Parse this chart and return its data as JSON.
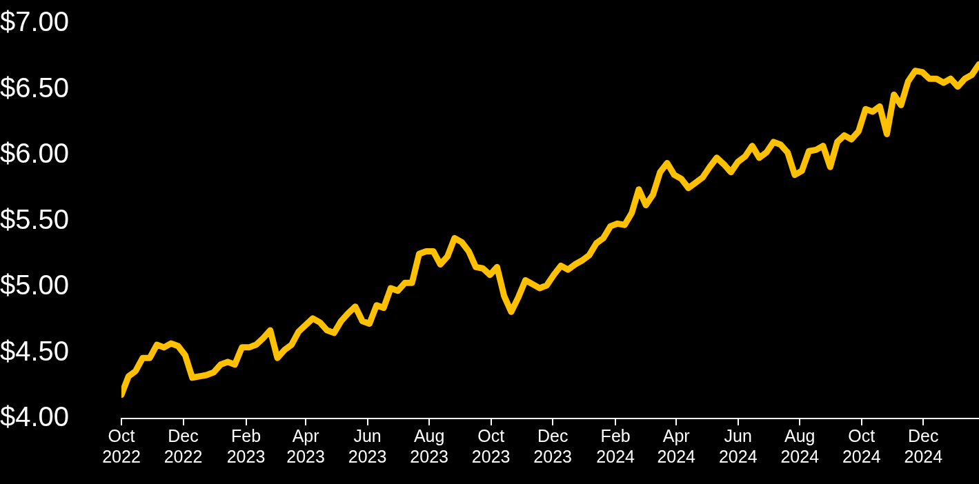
{
  "chart_data": {
    "type": "line",
    "x": [
      "2022-10-01",
      "2022-10-08",
      "2022-10-15",
      "2022-10-22",
      "2022-10-29",
      "2022-11-05",
      "2022-11-12",
      "2022-11-19",
      "2022-11-26",
      "2022-12-03",
      "2022-12-10",
      "2022-12-17",
      "2022-12-24",
      "2022-12-31",
      "2023-01-07",
      "2023-01-14",
      "2023-01-21",
      "2023-01-28",
      "2023-02-04",
      "2023-02-11",
      "2023-02-18",
      "2023-02-25",
      "2023-03-04",
      "2023-03-11",
      "2023-03-18",
      "2023-03-25",
      "2023-04-01",
      "2023-04-08",
      "2023-04-15",
      "2023-04-22",
      "2023-04-29",
      "2023-05-06",
      "2023-05-13",
      "2023-05-20",
      "2023-05-27",
      "2023-06-03",
      "2023-06-10",
      "2023-06-17",
      "2023-06-24",
      "2023-07-01",
      "2023-07-08",
      "2023-07-15",
      "2023-07-22",
      "2023-07-29",
      "2023-08-05",
      "2023-08-12",
      "2023-08-19",
      "2023-08-26",
      "2023-09-02",
      "2023-09-09",
      "2023-09-16",
      "2023-09-23",
      "2023-09-30",
      "2023-10-07",
      "2023-10-14",
      "2023-10-21",
      "2023-10-28",
      "2023-11-04",
      "2023-11-11",
      "2023-11-18",
      "2023-11-25",
      "2023-12-02",
      "2023-12-09",
      "2023-12-16",
      "2023-12-23",
      "2023-12-30",
      "2024-01-06",
      "2024-01-13",
      "2024-01-20",
      "2024-01-27",
      "2024-02-03",
      "2024-02-10",
      "2024-02-17",
      "2024-02-24",
      "2024-03-02",
      "2024-03-09",
      "2024-03-16",
      "2024-03-23",
      "2024-03-30",
      "2024-04-06",
      "2024-04-13",
      "2024-04-20",
      "2024-04-27",
      "2024-05-04",
      "2024-05-11",
      "2024-05-18",
      "2024-05-25",
      "2024-06-01",
      "2024-06-08",
      "2024-06-15",
      "2024-06-22",
      "2024-06-29",
      "2024-07-06",
      "2024-07-13",
      "2024-07-20",
      "2024-07-27",
      "2024-08-03",
      "2024-08-10",
      "2024-08-17",
      "2024-08-24",
      "2024-08-31",
      "2024-09-07",
      "2024-09-14",
      "2024-09-21",
      "2024-09-28",
      "2024-10-05",
      "2024-10-12",
      "2024-10-19",
      "2024-10-26",
      "2024-11-02",
      "2024-11-09",
      "2024-11-16",
      "2024-11-23",
      "2024-11-30",
      "2024-12-07",
      "2024-12-14",
      "2024-12-21",
      "2024-12-28",
      "2025-01-04",
      "2025-01-11",
      "2025-01-18",
      "2025-01-25"
    ],
    "series": [
      {
        "color": "#ffc000",
        "values": [
          4.18,
          4.32,
          4.36,
          4.46,
          4.46,
          4.56,
          4.54,
          4.57,
          4.55,
          4.48,
          4.31,
          4.32,
          4.33,
          4.35,
          4.41,
          4.43,
          4.41,
          4.54,
          4.54,
          4.56,
          4.61,
          4.67,
          4.46,
          4.52,
          4.56,
          4.66,
          4.71,
          4.76,
          4.73,
          4.67,
          4.65,
          4.74,
          4.8,
          4.85,
          4.74,
          4.72,
          4.86,
          4.84,
          4.99,
          4.97,
          5.03,
          5.03,
          5.25,
          5.27,
          5.27,
          5.17,
          5.23,
          5.37,
          5.34,
          5.27,
          5.15,
          5.14,
          5.09,
          5.15,
          4.93,
          4.81,
          4.92,
          5.05,
          5.02,
          4.99,
          5.01,
          5.09,
          5.16,
          5.13,
          5.17,
          5.2,
          5.24,
          5.33,
          5.37,
          5.46,
          5.48,
          5.47,
          5.56,
          5.74,
          5.62,
          5.7,
          5.87,
          5.94,
          5.85,
          5.82,
          5.75,
          5.79,
          5.83,
          5.91,
          5.98,
          5.93,
          5.87,
          5.95,
          5.99,
          6.07,
          5.98,
          6.02,
          6.1,
          6.08,
          6.02,
          5.85,
          5.88,
          6.03,
          6.04,
          6.07,
          5.91,
          6.1,
          6.15,
          6.12,
          6.18,
          6.35,
          6.33,
          6.37,
          6.16,
          6.46,
          6.38,
          6.56,
          6.64,
          6.63,
          6.58,
          6.58,
          6.55,
          6.58,
          6.52,
          6.58,
          6.61,
          6.69
        ]
      }
    ],
    "xlim": [
      "2022-10-01",
      "2025-01-25"
    ],
    "xticks": [
      {
        "value": "2022-10",
        "label": "Oct 2022"
      },
      {
        "value": "2022-12",
        "label": "Dec 2022"
      },
      {
        "value": "2023-02",
        "label": "Feb 2023"
      },
      {
        "value": "2023-04",
        "label": "Apr 2023"
      },
      {
        "value": "2023-06",
        "label": "Jun 2023"
      },
      {
        "value": "2023-08",
        "label": "Aug 2023"
      },
      {
        "value": "2023-10",
        "label": "Oct 2023"
      },
      {
        "value": "2023-12",
        "label": "Dec 2023"
      },
      {
        "value": "2024-02",
        "label": "Feb 2024"
      },
      {
        "value": "2024-04",
        "label": "Apr 2024"
      },
      {
        "value": "2024-06",
        "label": "Jun 2024"
      },
      {
        "value": "2024-08",
        "label": "Aug 2024"
      },
      {
        "value": "2024-10",
        "label": "Oct 2024"
      },
      {
        "value": "2024-12",
        "label": "Dec 2024"
      }
    ],
    "ylim": [
      4,
      7
    ],
    "yticks": [
      {
        "value": 4,
        "label": "$4.00"
      },
      {
        "value": 4.5,
        "label": "$4.50"
      },
      {
        "value": 5,
        "label": "$5.00"
      },
      {
        "value": 5.5,
        "label": "$5.50"
      },
      {
        "value": 6,
        "label": "$6.00"
      },
      {
        "value": 6.5,
        "label": "$6.50"
      },
      {
        "value": 7,
        "label": "$7.00"
      }
    ],
    "grid": false,
    "legend": false,
    "marker": "none",
    "line_style": "solid"
  }
}
